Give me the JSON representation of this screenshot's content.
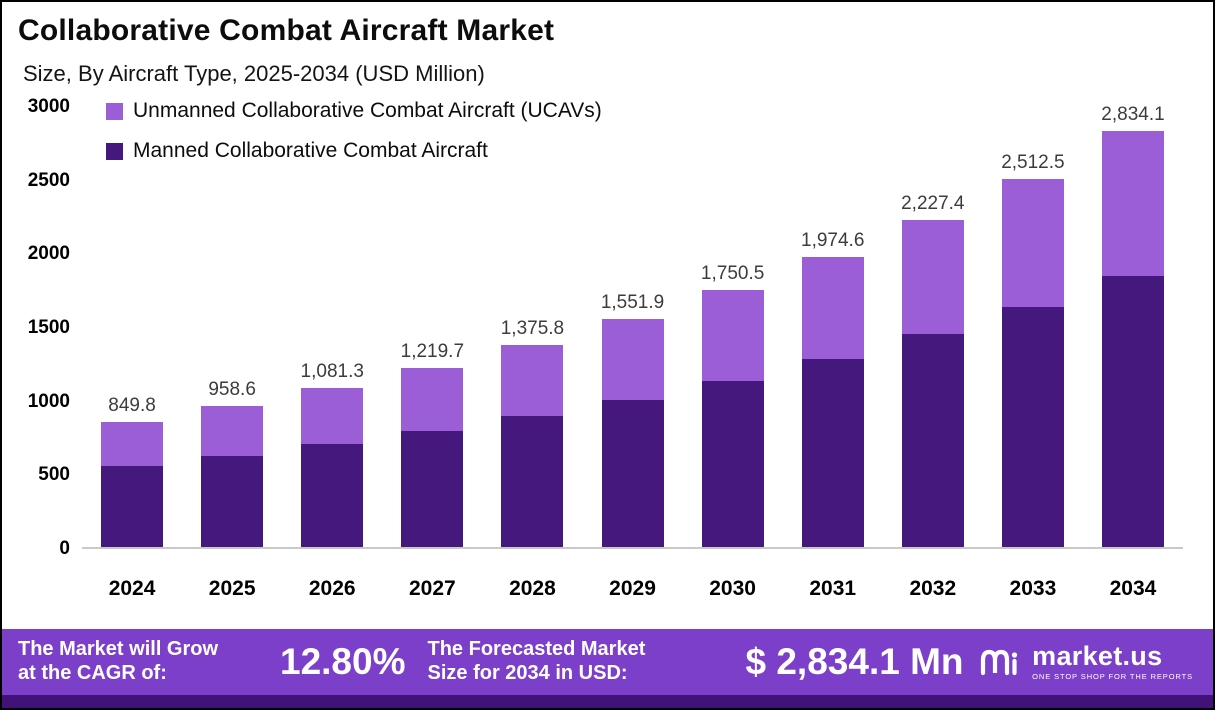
{
  "header": {
    "title": "Collaborative Combat Aircraft Market",
    "subtitle": "Size, By Aircraft Type, 2025-2034 (USD Million)"
  },
  "legend": [
    {
      "label": "Unmanned Collaborative Combat Aircraft (UCAVs)",
      "color": "#9b5ed6"
    },
    {
      "label": "Manned Collaborative Combat Aircraft",
      "color": "#45187d"
    }
  ],
  "chart_data": {
    "type": "bar",
    "stacked": true,
    "title": "Collaborative Combat Aircraft Market",
    "subtitle": "Size, By Aircraft Type, 2025-2034 (USD Million)",
    "categories": [
      "2024",
      "2025",
      "2026",
      "2027",
      "2028",
      "2029",
      "2030",
      "2031",
      "2032",
      "2033",
      "2034"
    ],
    "series": [
      {
        "name": "Manned Collaborative Combat Aircraft",
        "color": "#45187d",
        "values": [
          550,
          620,
          700,
          790,
          895,
          1005,
          1135,
          1280,
          1450,
          1635,
          1845
        ]
      },
      {
        "name": "Unmanned Collaborative Combat Aircraft (UCAVs)",
        "color": "#9b5ed6",
        "values": [
          299.8,
          338.6,
          381.3,
          429.7,
          480.8,
          546.9,
          615.5,
          694.6,
          777.4,
          877.5,
          989.1
        ]
      }
    ],
    "totals": [
      849.8,
      958.6,
      1081.3,
      1219.7,
      1375.8,
      1551.9,
      1750.5,
      1974.6,
      2227.4,
      2512.5,
      2834.1
    ],
    "total_labels": [
      "849.8",
      "958.6",
      "1,081.3",
      "1,219.7",
      "1,375.8",
      "1,551.9",
      "1,750.5",
      "1,974.6",
      "2,227.4",
      "2,512.5",
      "2,834.1"
    ],
    "ylim": [
      0,
      3000
    ],
    "yticks": [
      "0",
      "500",
      "1000",
      "1500",
      "2000",
      "2500",
      "3000"
    ],
    "grid": false,
    "legend_position": "top-left"
  },
  "footer": {
    "cagr_label_line1": "The Market will Grow",
    "cagr_label_line2": "at the CAGR of:",
    "cagr_value": "12.80%",
    "forecast_label_line1": "The Forecasted Market",
    "forecast_label_line2": "Size for 2034 in USD:",
    "forecast_value": "$ 2,834.1 Mn",
    "brand": "market.us",
    "brand_tagline": "ONE STOP SHOP FOR THE REPORTS"
  },
  "colors": {
    "banner": "#7c3fca",
    "banner_strip": "#41127a",
    "bar_dark": "#45187d",
    "bar_light": "#9b5ed6"
  }
}
